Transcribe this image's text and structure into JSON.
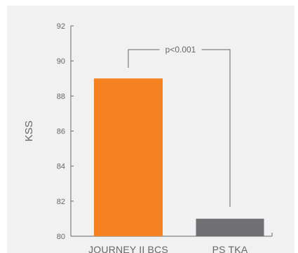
{
  "chart_data": {
    "type": "bar",
    "categories": [
      "JOURNEY II BCS",
      "PS TKA"
    ],
    "values": [
      89,
      81
    ],
    "colors": [
      "#f58220",
      "#717074"
    ],
    "ylabel": "KSS",
    "xlabel": "",
    "title": "",
    "ylim": [
      80,
      92
    ],
    "yticks": [
      80,
      82,
      84,
      86,
      88,
      90,
      92
    ],
    "grid": false,
    "annotation": "p<0.001",
    "axis_color": "#666666"
  }
}
